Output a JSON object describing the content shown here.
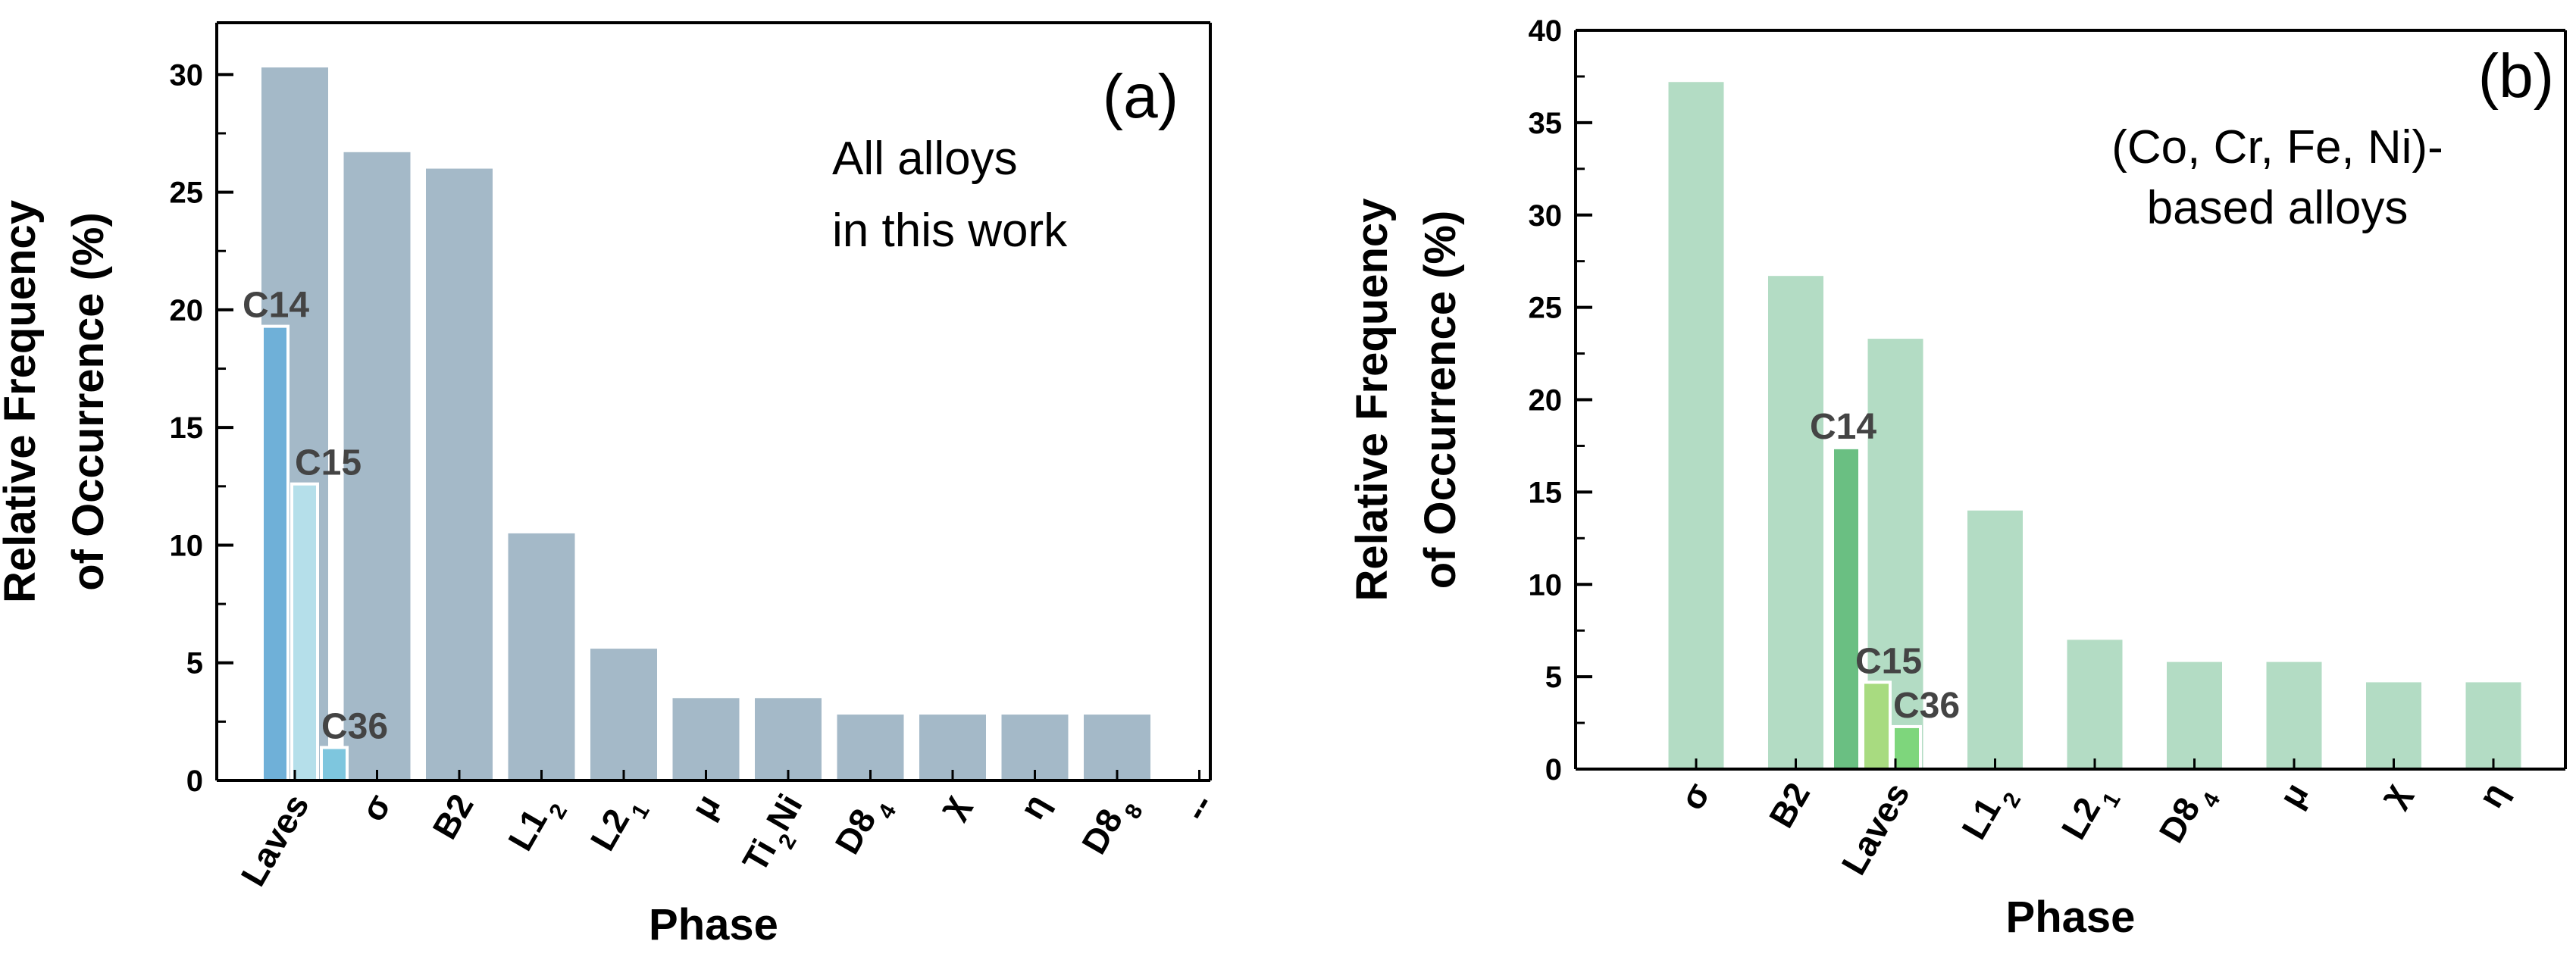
{
  "colors": {
    "a_bar": "#A4B9C8",
    "a_c14": "#6FB0D8",
    "a_c15": "#B5DFEA",
    "a_c36": "#7EC6DE",
    "b_bar": "#B3DCC4",
    "b_c14": "#6ABF82",
    "b_c15": "#A8DB80",
    "b_c36": "#7ED67C",
    "axis": "#000000"
  },
  "chart_data": [
    {
      "type": "bar",
      "panel_label": "(a)",
      "annotation": [
        "All alloys",
        "in this work"
      ],
      "xlabel": "Phase",
      "ylabel_lines": [
        "Relative Frequency",
        "of Occurrence (%)"
      ],
      "ylim": [
        0,
        32.2
      ],
      "yticks": [
        0,
        5,
        10,
        15,
        20,
        25,
        30
      ],
      "categories": [
        {
          "text": "Laves",
          "sub": ""
        },
        {
          "text": "σ",
          "sub": ""
        },
        {
          "text": "B2",
          "sub": ""
        },
        {
          "text": "L1",
          "sub": "2"
        },
        {
          "text": "L2",
          "sub": "1"
        },
        {
          "text": "μ",
          "sub": ""
        },
        {
          "text": "Ti",
          "sub": "2",
          "tail": "Ni"
        },
        {
          "text": "D8",
          "sub": "4"
        },
        {
          "text": "χ",
          "sub": ""
        },
        {
          "text": "η",
          "sub": ""
        },
        {
          "text": "D8",
          "sub": "8"
        },
        {
          "text": "--",
          "sub": ""
        }
      ],
      "values": [
        30.3,
        26.7,
        26.0,
        10.5,
        5.6,
        3.5,
        3.5,
        2.8,
        2.8,
        2.8,
        2.8,
        0
      ],
      "laves_subtypes": [
        {
          "name": "C14",
          "value": 19.3
        },
        {
          "name": "C15",
          "value": 12.6
        },
        {
          "name": "C36",
          "value": 1.4
        }
      ]
    },
    {
      "type": "bar",
      "panel_label": "(b)",
      "annotation": [
        "(Co, Cr, Fe, Ni)-",
        "based alloys"
      ],
      "xlabel": "Phase",
      "ylabel_lines": [
        "Relative Frequency",
        "of Occurrence (%)"
      ],
      "ylim": [
        0,
        40
      ],
      "yticks": [
        0,
        5,
        10,
        15,
        20,
        25,
        30,
        35,
        40
      ],
      "categories": [
        {
          "text": "σ",
          "sub": ""
        },
        {
          "text": "B2",
          "sub": ""
        },
        {
          "text": "Laves",
          "sub": ""
        },
        {
          "text": "L1",
          "sub": "2"
        },
        {
          "text": "L2",
          "sub": "1"
        },
        {
          "text": "D8",
          "sub": "4"
        },
        {
          "text": "μ",
          "sub": ""
        },
        {
          "text": "χ",
          "sub": ""
        },
        {
          "text": "η",
          "sub": ""
        }
      ],
      "values": [
        37.2,
        26.7,
        23.3,
        14.0,
        7.0,
        5.8,
        5.8,
        4.7,
        4.7
      ],
      "laves_subtypes": [
        {
          "name": "C14",
          "value": 17.4
        },
        {
          "name": "C15",
          "value": 4.7
        },
        {
          "name": "C36",
          "value": 2.3
        }
      ]
    }
  ]
}
